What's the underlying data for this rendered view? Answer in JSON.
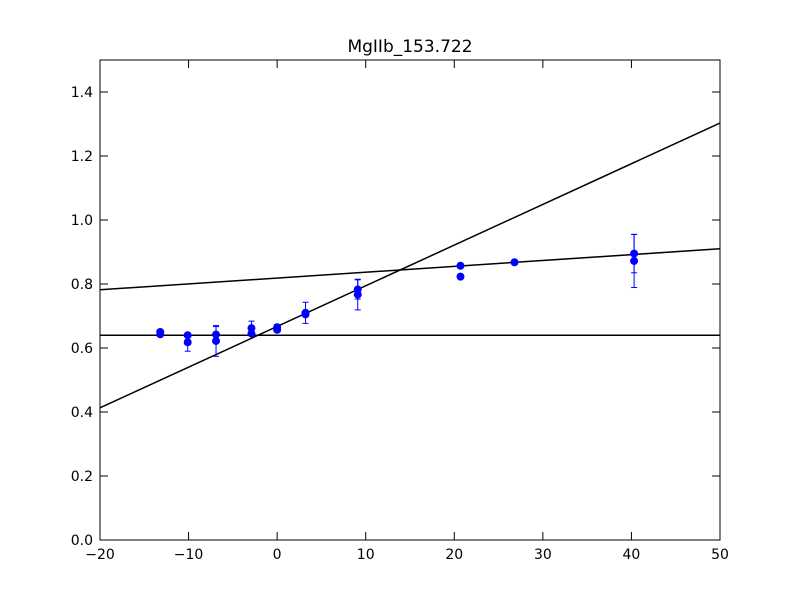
{
  "chart_data": {
    "type": "scatter",
    "title": "MgIIb_153.722",
    "xlabel": "",
    "ylabel": "",
    "xlim": [
      -20,
      50
    ],
    "ylim": [
      0.0,
      1.5
    ],
    "xticks": [
      -20,
      -10,
      0,
      10,
      20,
      30,
      40,
      50
    ],
    "xtick_labels": [
      "−20",
      "−10",
      "0",
      "10",
      "20",
      "30",
      "40",
      "50"
    ],
    "yticks": [
      0.0,
      0.2,
      0.4,
      0.6,
      0.8,
      1.0,
      1.2,
      1.4
    ],
    "ytick_labels": [
      "0.0",
      "0.2",
      "0.4",
      "0.6",
      "0.8",
      "1.0",
      "1.2",
      "1.4"
    ],
    "grid": false,
    "points_color": "#0000ff",
    "line_color": "#000000",
    "points": [
      {
        "x": -13.2,
        "y": 0.65,
        "err": 0.005
      },
      {
        "x": -13.2,
        "y": 0.643,
        "err": 0.005
      },
      {
        "x": -10.1,
        "y": 0.64,
        "err": 0.005
      },
      {
        "x": -10.1,
        "y": 0.618,
        "err": 0.028
      },
      {
        "x": -6.9,
        "y": 0.642,
        "err": 0.025
      },
      {
        "x": -6.9,
        "y": 0.622,
        "err": 0.048
      },
      {
        "x": -2.9,
        "y": 0.662,
        "err": 0.022
      },
      {
        "x": -2.9,
        "y": 0.645,
        "err": 0.005
      },
      {
        "x": 0.0,
        "y": 0.665,
        "err": 0.008
      },
      {
        "x": 0.0,
        "y": 0.657,
        "err": 0.005
      },
      {
        "x": 3.2,
        "y": 0.71,
        "err": 0.033
      },
      {
        "x": 3.2,
        "y": 0.705,
        "err": 0.005
      },
      {
        "x": 9.1,
        "y": 0.783,
        "err": 0.03
      },
      {
        "x": 9.1,
        "y": 0.767,
        "err": 0.048
      },
      {
        "x": 20.7,
        "y": 0.857,
        "err": 0.005
      },
      {
        "x": 20.7,
        "y": 0.823,
        "err": 0.005
      },
      {
        "x": 26.8,
        "y": 0.868,
        "err": 0.005
      },
      {
        "x": 40.3,
        "y": 0.895,
        "err": 0.06
      },
      {
        "x": 40.3,
        "y": 0.872,
        "err": 0.083
      }
    ],
    "lines": [
      {
        "x": [
          -20,
          50
        ],
        "y": [
          0.64,
          0.64
        ]
      },
      {
        "x": [
          -20,
          50
        ],
        "y": [
          0.782,
          0.91
        ]
      },
      {
        "x": [
          -20,
          50
        ],
        "y": [
          0.413,
          1.303
        ]
      }
    ]
  }
}
